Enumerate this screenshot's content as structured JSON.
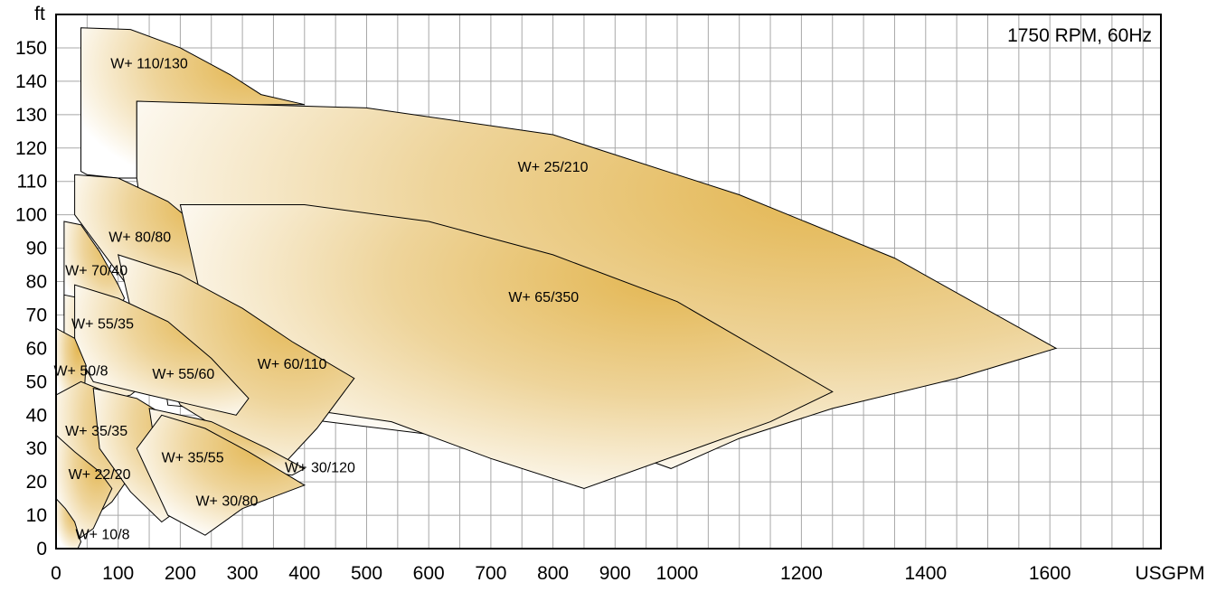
{
  "chart_data": {
    "type": "area",
    "title": "1750 RPM, 60Hz",
    "xlabel": "USGPM",
    "ylabel": "ft",
    "grid": true,
    "x_ticks": [
      {
        "value": 0,
        "label": "0"
      },
      {
        "value": 100,
        "label": "100"
      },
      {
        "value": 200,
        "label": "200"
      },
      {
        "value": 300,
        "label": "300"
      },
      {
        "value": 400,
        "label": "400"
      },
      {
        "value": 500,
        "label": "500"
      },
      {
        "value": 600,
        "label": "600"
      },
      {
        "value": 700,
        "label": "700"
      },
      {
        "value": 800,
        "label": "800"
      },
      {
        "value": 900,
        "label": "900"
      },
      {
        "value": 1000,
        "label": "1000"
      },
      {
        "value": 1200,
        "label": "1200"
      },
      {
        "value": 1400,
        "label": "1400"
      },
      {
        "value": 1600,
        "label": "1600"
      }
    ],
    "y_ticks": [
      0,
      10,
      20,
      30,
      40,
      50,
      60,
      70,
      80,
      90,
      100,
      110,
      120,
      130,
      140,
      150
    ],
    "colors": {
      "fill_dark": "#e3b651",
      "fill_light": "#ffffff",
      "grid": "#a8a8a8",
      "outline": "#000000"
    },
    "regions": [
      {
        "label": "W+ 110/130",
        "label_at": [
          150,
          145
        ],
        "points": [
          [
            40,
            113
          ],
          [
            40,
            156
          ],
          [
            120,
            155.5
          ],
          [
            200,
            150
          ],
          [
            280,
            142
          ],
          [
            330,
            136
          ],
          [
            400,
            133
          ],
          [
            340,
            133
          ],
          [
            220,
            133
          ],
          [
            130,
            134
          ],
          [
            130,
            111
          ],
          [
            100,
            111
          ],
          [
            50,
            112
          ],
          [
            40,
            113
          ]
        ]
      },
      {
        "label": "W+ 25/210",
        "label_at": [
          800,
          114
        ],
        "points": [
          [
            130,
            111
          ],
          [
            130,
            134
          ],
          [
            500,
            132
          ],
          [
            800,
            124
          ],
          [
            1100,
            106
          ],
          [
            1350,
            87
          ],
          [
            1610,
            60
          ],
          [
            1450,
            51
          ],
          [
            1250,
            42
          ],
          [
            1100,
            33
          ],
          [
            990,
            24
          ],
          [
            960,
            26
          ],
          [
            350,
            40
          ],
          [
            180,
            43
          ],
          [
            130,
            111
          ]
        ]
      },
      {
        "label": "W+ 80/80",
        "label_at": [
          135,
          93
        ],
        "points": [
          [
            30,
            100
          ],
          [
            30,
            112
          ],
          [
            100,
            111
          ],
          [
            180,
            104
          ],
          [
            245,
            94
          ],
          [
            300,
            80
          ],
          [
            290,
            77
          ],
          [
            270,
            73
          ],
          [
            150,
            78
          ],
          [
            110,
            80
          ],
          [
            30,
            100
          ]
        ]
      },
      {
        "label": "W+ 65/350",
        "label_at": [
          785,
          75
        ],
        "points": [
          [
            230,
            78
          ],
          [
            200,
            103
          ],
          [
            400,
            103
          ],
          [
            600,
            98
          ],
          [
            800,
            88
          ],
          [
            1000,
            74
          ],
          [
            1250,
            47
          ],
          [
            1150,
            38
          ],
          [
            1000,
            28
          ],
          [
            850,
            18
          ],
          [
            700,
            27
          ],
          [
            540,
            38
          ],
          [
            430,
            41
          ],
          [
            350,
            43
          ],
          [
            230,
            78
          ]
        ]
      },
      {
        "label": "W+ 70/40",
        "label_at": [
          65,
          83
        ],
        "points": [
          [
            13,
            70
          ],
          [
            13,
            98
          ],
          [
            40,
            97
          ],
          [
            70,
            89
          ],
          [
            100,
            79
          ],
          [
            110,
            75
          ],
          [
            100,
            72
          ],
          [
            60,
            70
          ],
          [
            13,
            70
          ]
        ]
      },
      {
        "label": "W+ 60/110",
        "label_at": [
          380,
          55
        ],
        "points": [
          [
            120,
            72
          ],
          [
            100,
            88
          ],
          [
            200,
            82
          ],
          [
            300,
            72
          ],
          [
            380,
            62
          ],
          [
            480,
            51
          ],
          [
            420,
            36
          ],
          [
            350,
            22
          ],
          [
            300,
            26
          ],
          [
            270,
            35
          ],
          [
            200,
            43
          ],
          [
            120,
            72
          ]
        ]
      },
      {
        "label": "W+ 55/35",
        "label_at": [
          75,
          67
        ],
        "points": [
          [
            13,
            55
          ],
          [
            13,
            76
          ],
          [
            40,
            75
          ],
          [
            70,
            70
          ],
          [
            100,
            61
          ],
          [
            140,
            49
          ],
          [
            120,
            46
          ],
          [
            80,
            44
          ],
          [
            13,
            55
          ]
        ]
      },
      {
        "label": "W+ 55/60",
        "label_at": [
          205,
          52
        ],
        "points": [
          [
            30,
            60
          ],
          [
            30,
            79
          ],
          [
            100,
            75
          ],
          [
            180,
            68
          ],
          [
            250,
            57
          ],
          [
            310,
            45
          ],
          [
            290,
            40
          ],
          [
            220,
            43
          ],
          [
            150,
            46
          ],
          [
            60,
            50
          ],
          [
            30,
            60
          ]
        ]
      },
      {
        "label": "W+ 50/8",
        "label_at": [
          40,
          53
        ],
        "points": [
          [
            0,
            42
          ],
          [
            0,
            66
          ],
          [
            30,
            63
          ],
          [
            48,
            55
          ],
          [
            45,
            45
          ],
          [
            0,
            42
          ]
        ]
      },
      {
        "label": "W+ 35/35",
        "label_at": [
          65,
          35
        ],
        "points": [
          [
            0,
            25
          ],
          [
            0,
            46
          ],
          [
            40,
            50
          ],
          [
            80,
            47
          ],
          [
            110,
            40
          ],
          [
            140,
            30
          ],
          [
            120,
            22
          ],
          [
            90,
            14
          ],
          [
            50,
            8
          ],
          [
            0,
            25
          ]
        ]
      },
      {
        "label": "W+ 35/55",
        "label_at": [
          220,
          27
        ],
        "points": [
          [
            70,
            30
          ],
          [
            60,
            48
          ],
          [
            130,
            45
          ],
          [
            200,
            37
          ],
          [
            260,
            29
          ],
          [
            240,
            24
          ],
          [
            200,
            12
          ],
          [
            170,
            8
          ],
          [
            120,
            17
          ],
          [
            70,
            30
          ]
        ]
      },
      {
        "label": "W+ 30/120",
        "label_at": [
          425,
          24
        ],
        "points": [
          [
            160,
            30
          ],
          [
            150,
            42
          ],
          [
            250,
            38
          ],
          [
            340,
            30
          ],
          [
            400,
            24
          ],
          [
            380,
            22
          ],
          [
            340,
            23
          ],
          [
            260,
            29
          ],
          [
            200,
            32
          ],
          [
            160,
            30
          ]
        ]
      },
      {
        "label": "W+ 22/20",
        "label_at": [
          70,
          22
        ],
        "points": [
          [
            0,
            14
          ],
          [
            0,
            34
          ],
          [
            30,
            29
          ],
          [
            70,
            23
          ],
          [
            90,
            18
          ],
          [
            60,
            6
          ],
          [
            30,
            2
          ],
          [
            0,
            14
          ]
        ]
      },
      {
        "label": "W+ 30/80",
        "label_at": [
          275,
          14
        ],
        "points": [
          [
            130,
            30
          ],
          [
            170,
            40
          ],
          [
            240,
            36
          ],
          [
            310,
            29
          ],
          [
            400,
            19
          ],
          [
            300,
            12
          ],
          [
            240,
            4
          ],
          [
            180,
            10
          ],
          [
            130,
            30
          ]
        ]
      },
      {
        "label": "W+ 10/8",
        "label_at": [
          75,
          4
        ],
        "points": [
          [
            0,
            0
          ],
          [
            0,
            15
          ],
          [
            15,
            12
          ],
          [
            30,
            8
          ],
          [
            40,
            2
          ],
          [
            35,
            0
          ],
          [
            0,
            0
          ]
        ]
      }
    ]
  }
}
